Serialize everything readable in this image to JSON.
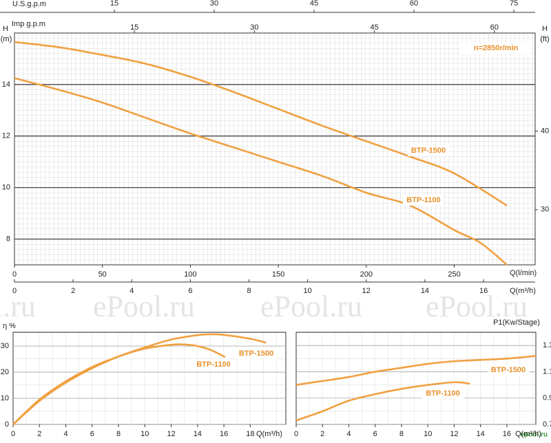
{
  "watermarks": [
    "l.ru",
    "ePool.ru",
    "ePool.ru",
    "ePool.ru"
  ],
  "logo": "epool.ru",
  "chart_data": [
    {
      "type": "line",
      "x_label": "Q(l/min)",
      "xlim": [
        0,
        296
      ],
      "xticks": [
        0,
        50,
        100,
        150,
        200,
        250
      ],
      "y_label": "H",
      "y_unit": "(m)",
      "ylim": [
        7,
        16
      ],
      "yticks": [
        8,
        10,
        12,
        14
      ],
      "y_axis_side": "left",
      "x2_label": "Q(m³/h)",
      "x2lim": [
        0,
        17.76
      ],
      "x2ticks": [
        0,
        2,
        4,
        6,
        8,
        10,
        12,
        14,
        16
      ],
      "top_axes": [
        {
          "label": "U.S.g.p.m",
          "lim": [
            0,
            78.2
          ],
          "ticks": [
            15,
            30,
            45,
            60,
            75
          ]
        },
        {
          "label": "Imp  g.p.m",
          "lim": [
            0,
            65.1
          ],
          "ticks": [
            15,
            30,
            45,
            60
          ]
        }
      ],
      "y2_label": "H",
      "y2_unit": "(ft)",
      "y2lim": [
        22.97,
        52.49
      ],
      "y2ticks": [
        30,
        40
      ],
      "annotation": "n=2850r/min",
      "grid": true,
      "series": [
        {
          "name": "BTP-1500",
          "color": "#f0a040",
          "x": [
            0,
            25,
            50,
            75,
            100,
            125,
            150,
            175,
            200,
            225,
            250,
            280
          ],
          "values": [
            15.65,
            15.45,
            15.15,
            14.8,
            14.3,
            13.7,
            13.05,
            12.4,
            11.8,
            11.2,
            10.55,
            9.3
          ]
        },
        {
          "name": "BTP-1100",
          "color": "#f0a040",
          "x": [
            0,
            25,
            50,
            75,
            100,
            125,
            150,
            175,
            200,
            225,
            250,
            265,
            280
          ],
          "values": [
            14.25,
            13.8,
            13.3,
            12.7,
            12.1,
            11.55,
            11.0,
            10.45,
            9.8,
            9.3,
            8.35,
            7.85,
            7.0
          ]
        }
      ]
    },
    {
      "type": "line",
      "x_label": "Q(m³/h)",
      "xlim": [
        0,
        20.7
      ],
      "xticks": [
        0,
        2,
        4,
        6,
        8,
        10,
        12,
        14,
        16,
        18
      ],
      "y_label": "η %",
      "ylim": [
        0,
        35.3
      ],
      "yticks": [
        0,
        10,
        20,
        30
      ],
      "y_axis_side": "left",
      "grid": true,
      "series": [
        {
          "name": "BTP-1500",
          "color": "#f0a040",
          "x": [
            0,
            2,
            4,
            6,
            8,
            10,
            12,
            14,
            15,
            16,
            18,
            19.2
          ],
          "values": [
            0,
            9,
            16,
            21.5,
            26,
            29.5,
            32.5,
            34.2,
            34.5,
            34.3,
            32.8,
            31.3
          ]
        },
        {
          "name": "BTP-1100",
          "color": "#f0a040",
          "x": [
            0,
            2,
            4,
            6,
            8,
            10,
            12,
            13,
            14,
            15,
            16.1
          ],
          "values": [
            0,
            9.5,
            16.5,
            22,
            26,
            29,
            30.5,
            30.6,
            30,
            28.5,
            25.8
          ]
        }
      ]
    },
    {
      "type": "line",
      "x_label": "Q(m³/h)",
      "xlim": [
        0,
        18.2
      ],
      "xticks": [
        0,
        2,
        4,
        6,
        8,
        10,
        12,
        14,
        16
      ],
      "y_label": "P1(Kw/Stage)",
      "ylim": [
        0.7,
        1.4
      ],
      "yticks": [
        0.7,
        0.9,
        1.1,
        1.3
      ],
      "y_axis_side": "right",
      "grid": true,
      "series": [
        {
          "name": "BTP-1500",
          "color": "#f0a040",
          "x": [
            0,
            2,
            4,
            6,
            8,
            10,
            12,
            14,
            16,
            18.2
          ],
          "values": [
            1.0,
            1.03,
            1.06,
            1.1,
            1.13,
            1.16,
            1.18,
            1.19,
            1.2,
            1.22
          ]
        },
        {
          "name": "BTP-1100",
          "color": "#f0a040",
          "x": [
            0,
            2,
            4,
            6,
            8,
            10,
            12,
            13.2
          ],
          "values": [
            0.73,
            0.8,
            0.88,
            0.93,
            0.97,
            1.0,
            1.02,
            1.01
          ]
        }
      ]
    }
  ]
}
